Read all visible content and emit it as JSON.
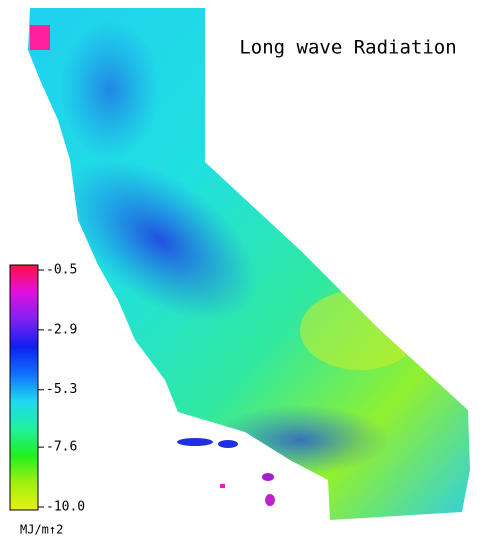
{
  "map": {
    "title": "Long wave Radiation",
    "colorbar": {
      "lim": [
        -10,
        -0.5
      ],
      "ticks": [
        -0.5,
        -2.9,
        -5.3,
        -7.6,
        {
          "value": -10,
          "label": "-10.0"
        }
      ],
      "colors": [
        "#ff1040",
        "#e010e0",
        "#8020f0",
        "#1020f0",
        "#1070ff",
        "#20d8f0",
        "#20f0a0",
        "#20f020",
        "#a0f010",
        "#e8f010"
      ],
      "unit": "MJ/m↑2"
    }
  }
}
